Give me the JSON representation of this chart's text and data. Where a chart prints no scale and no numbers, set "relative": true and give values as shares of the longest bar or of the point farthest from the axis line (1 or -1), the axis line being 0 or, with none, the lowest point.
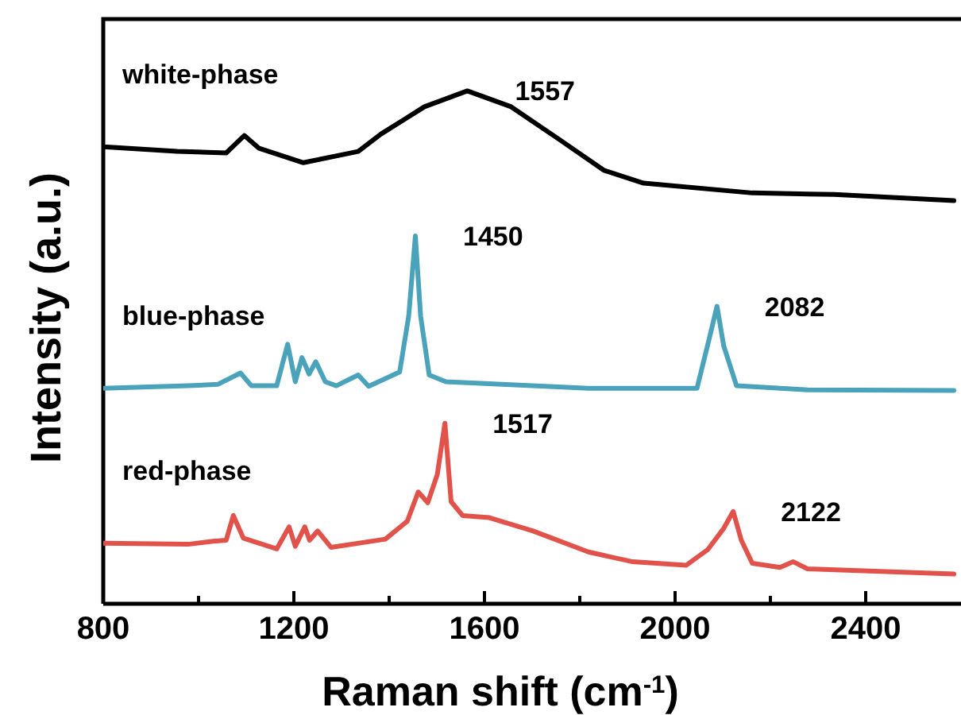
{
  "chart_data": {
    "type": "line",
    "relative": true,
    "xlabel": "Raman shift (cm$^{-1}$)",
    "ylabel": "Intensity (a.u.)",
    "xlim": [
      800,
      2600
    ],
    "xticks": [
      800,
      {
        "value": 1000,
        "label": null
      },
      1200,
      {
        "value": 1400,
        "label": null
      },
      1600,
      {
        "value": 1800,
        "label": null
      },
      2000,
      {
        "value": 2200,
        "label": null
      },
      2400
    ],
    "grid": false,
    "legend": false,
    "marker": "none",
    "line_style": "solid",
    "series": [
      {
        "name": "white-phase",
        "color": "#000000",
        "x": [
          800,
          955,
          1058,
          1096,
          1127,
          1220,
          1335,
          1383,
          1474,
          1564,
          1656,
          1759,
          1851,
          1934,
          2162,
          2334,
          2585
        ],
        "values": [
          0.891,
          0.882,
          0.879,
          0.913,
          0.888,
          0.86,
          0.882,
          0.916,
          0.969,
          1,
          0.969,
          0.904,
          0.845,
          0.82,
          0.801,
          0.798,
          0.786
        ]
      },
      {
        "name": "blue-phase",
        "color": "#4aa3bb",
        "x": [
          800,
          978,
          1041,
          1088,
          1111,
          1164,
          1187,
          1203,
          1217,
          1232,
          1246,
          1266,
          1289,
          1335,
          1357,
          1422,
          1441,
          1455,
          1466,
          1484,
          1519,
          1818,
          2046,
          2072,
          2088,
          2102,
          2129,
          2278,
          2585
        ],
        "values": [
          0.42,
          0.425,
          0.428,
          0.45,
          0.425,
          0.425,
          0.506,
          0.433,
          0.48,
          0.448,
          0.472,
          0.433,
          0.425,
          0.446,
          0.424,
          0.452,
          0.561,
          0.717,
          0.561,
          0.446,
          0.433,
          0.42,
          0.42,
          0.518,
          0.58,
          0.503,
          0.425,
          0.417,
          0.416
        ]
      },
      {
        "name": "red-phase",
        "color": "#e0524a",
        "x": [
          800,
          978,
          1031,
          1058,
          1073,
          1094,
          1164,
          1190,
          1203,
          1223,
          1233,
          1250,
          1278,
          1392,
          1438,
          1461,
          1481,
          1501,
          1517,
          1530,
          1554,
          1610,
          1702,
          1818,
          1911,
          2023,
          2069,
          2102,
          2122,
          2139,
          2162,
          2220,
          2248,
          2278,
          2585
        ],
        "values": [
          0.118,
          0.116,
          0.122,
          0.124,
          0.172,
          0.128,
          0.107,
          0.15,
          0.112,
          0.15,
          0.124,
          0.142,
          0.11,
          0.126,
          0.161,
          0.218,
          0.197,
          0.252,
          0.352,
          0.199,
          0.172,
          0.168,
          0.142,
          0.101,
          0.082,
          0.075,
          0.106,
          0.147,
          0.18,
          0.124,
          0.079,
          0.071,
          0.082,
          0.068,
          0.058
        ]
      }
    ],
    "annotations": [
      {
        "text": "1557",
        "x": 1564,
        "y": 1
      },
      {
        "text": "1450",
        "x": 1455,
        "y": 0.717
      },
      {
        "text": "2082",
        "x": 2088,
        "y": 0.58
      },
      {
        "text": "1517",
        "x": 1517,
        "y": 0.352
      },
      {
        "text": "2122",
        "x": 2122,
        "y": 0.18
      }
    ]
  }
}
